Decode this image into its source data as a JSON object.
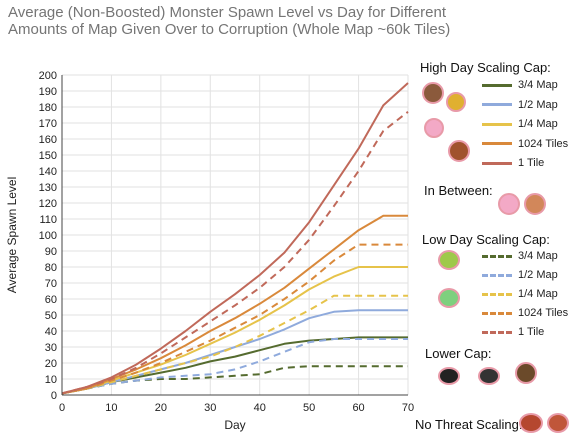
{
  "chart_data": {
    "type": "line",
    "title": "Average (Non-Boosted) Monster Spawn Level vs Day for Different Amounts of Map Given Over to Corruption (Whole Map ~60k Tiles)",
    "title_lines": [
      "Average (Non-Boosted) Monster Spawn Level vs Day for Different",
      "Amounts of Map Given Over to Corruption (Whole Map ~60k Tiles)"
    ],
    "xlabel": "Day",
    "ylabel": "Average Spawn Level",
    "xlim": [
      0,
      70
    ],
    "ylim": [
      0,
      200
    ],
    "xticks": [
      "0",
      "10",
      "20",
      "30",
      "40",
      "50",
      "60",
      "70"
    ],
    "yticks": [
      "0",
      "10",
      "20",
      "30",
      "40",
      "50",
      "60",
      "70",
      "80",
      "90",
      "100",
      "110",
      "120",
      "130",
      "140",
      "150",
      "160",
      "170",
      "180",
      "190",
      "200"
    ],
    "grid": true,
    "legend_position": "right",
    "groups": [
      {
        "title": "High Day Scaling Cap:",
        "style": "solid",
        "entries": [
          "3/4 Map",
          "1/2 Map",
          "1/4 Map",
          "1024 Tiles",
          "1 Tile"
        ]
      },
      {
        "title": "In Between:",
        "style": "none",
        "entries": []
      },
      {
        "title": "Low Day Scaling Cap:",
        "style": "dashed",
        "entries": [
          "3/4 Map",
          "1/2 Map",
          "1/4 Map",
          "1024 Tiles",
          "1 Tile"
        ]
      },
      {
        "title": "Lower Cap:",
        "style": "none",
        "entries": []
      },
      {
        "title": "No Threat Scaling:",
        "style": "none",
        "entries": []
      }
    ],
    "x": [
      0,
      5,
      10,
      15,
      20,
      25,
      30,
      35,
      40,
      45,
      50,
      55,
      60,
      65,
      70
    ],
    "series": [
      {
        "name": "3/4 Map",
        "group": "High Day Scaling Cap",
        "style": "solid",
        "color": "#556b2f",
        "values": [
          1,
          4,
          8,
          11,
          14,
          17,
          21,
          24,
          28,
          32,
          34,
          35,
          36,
          36,
          36
        ]
      },
      {
        "name": "1/2 Map",
        "group": "High Day Scaling Cap",
        "style": "solid",
        "color": "#8faadc",
        "values": [
          1,
          4,
          8,
          12,
          16,
          20,
          25,
          30,
          35,
          41,
          48,
          52,
          53,
          53,
          53
        ]
      },
      {
        "name": "1/4 Map",
        "group": "High Day Scaling Cap",
        "style": "solid",
        "color": "#e6c34a",
        "values": [
          1,
          4,
          9,
          14,
          19,
          25,
          32,
          39,
          47,
          56,
          66,
          74,
          80,
          80,
          80
        ]
      },
      {
        "name": "1024 Tiles",
        "group": "High Day Scaling Cap",
        "style": "solid",
        "color": "#d9893b",
        "values": [
          1,
          4,
          10,
          16,
          23,
          31,
          40,
          48,
          57,
          67,
          79,
          91,
          103,
          112,
          112
        ]
      },
      {
        "name": "1 Tile",
        "group": "High Day Scaling Cap",
        "style": "solid",
        "color": "#c0695a",
        "values": [
          1,
          5,
          11,
          19,
          29,
          40,
          52,
          63,
          75,
          89,
          108,
          131,
          154,
          181,
          195
        ]
      },
      {
        "name": "3/4 Map",
        "group": "Low Day Scaling Cap",
        "style": "dashed",
        "color": "#556b2f",
        "values": [
          1,
          4,
          7,
          9,
          10,
          10,
          11,
          12,
          13,
          17,
          18,
          18,
          18,
          18,
          18
        ]
      },
      {
        "name": "1/2 Map",
        "group": "Low Day Scaling Cap",
        "style": "dashed",
        "color": "#8faadc",
        "values": [
          1,
          4,
          7,
          9,
          11,
          12,
          13,
          16,
          21,
          27,
          33,
          35,
          35,
          35,
          35
        ]
      },
      {
        "name": "1/4 Map",
        "group": "Low Day Scaling Cap",
        "style": "dashed",
        "color": "#e6c34a",
        "values": [
          1,
          4,
          8,
          12,
          16,
          20,
          24,
          30,
          37,
          45,
          53,
          62,
          62,
          62,
          62
        ]
      },
      {
        "name": "1024 Tiles",
        "group": "Low Day Scaling Cap",
        "style": "dashed",
        "color": "#d9893b",
        "values": [
          1,
          4,
          9,
          14,
          20,
          27,
          34,
          42,
          50,
          60,
          71,
          84,
          94,
          94,
          94
        ]
      },
      {
        "name": "1 Tile",
        "group": "Low Day Scaling Cap",
        "style": "dashed",
        "color": "#c0695a",
        "values": [
          1,
          5,
          10,
          17,
          26,
          36,
          46,
          56,
          67,
          80,
          97,
          118,
          140,
          165,
          177
        ]
      }
    ]
  }
}
